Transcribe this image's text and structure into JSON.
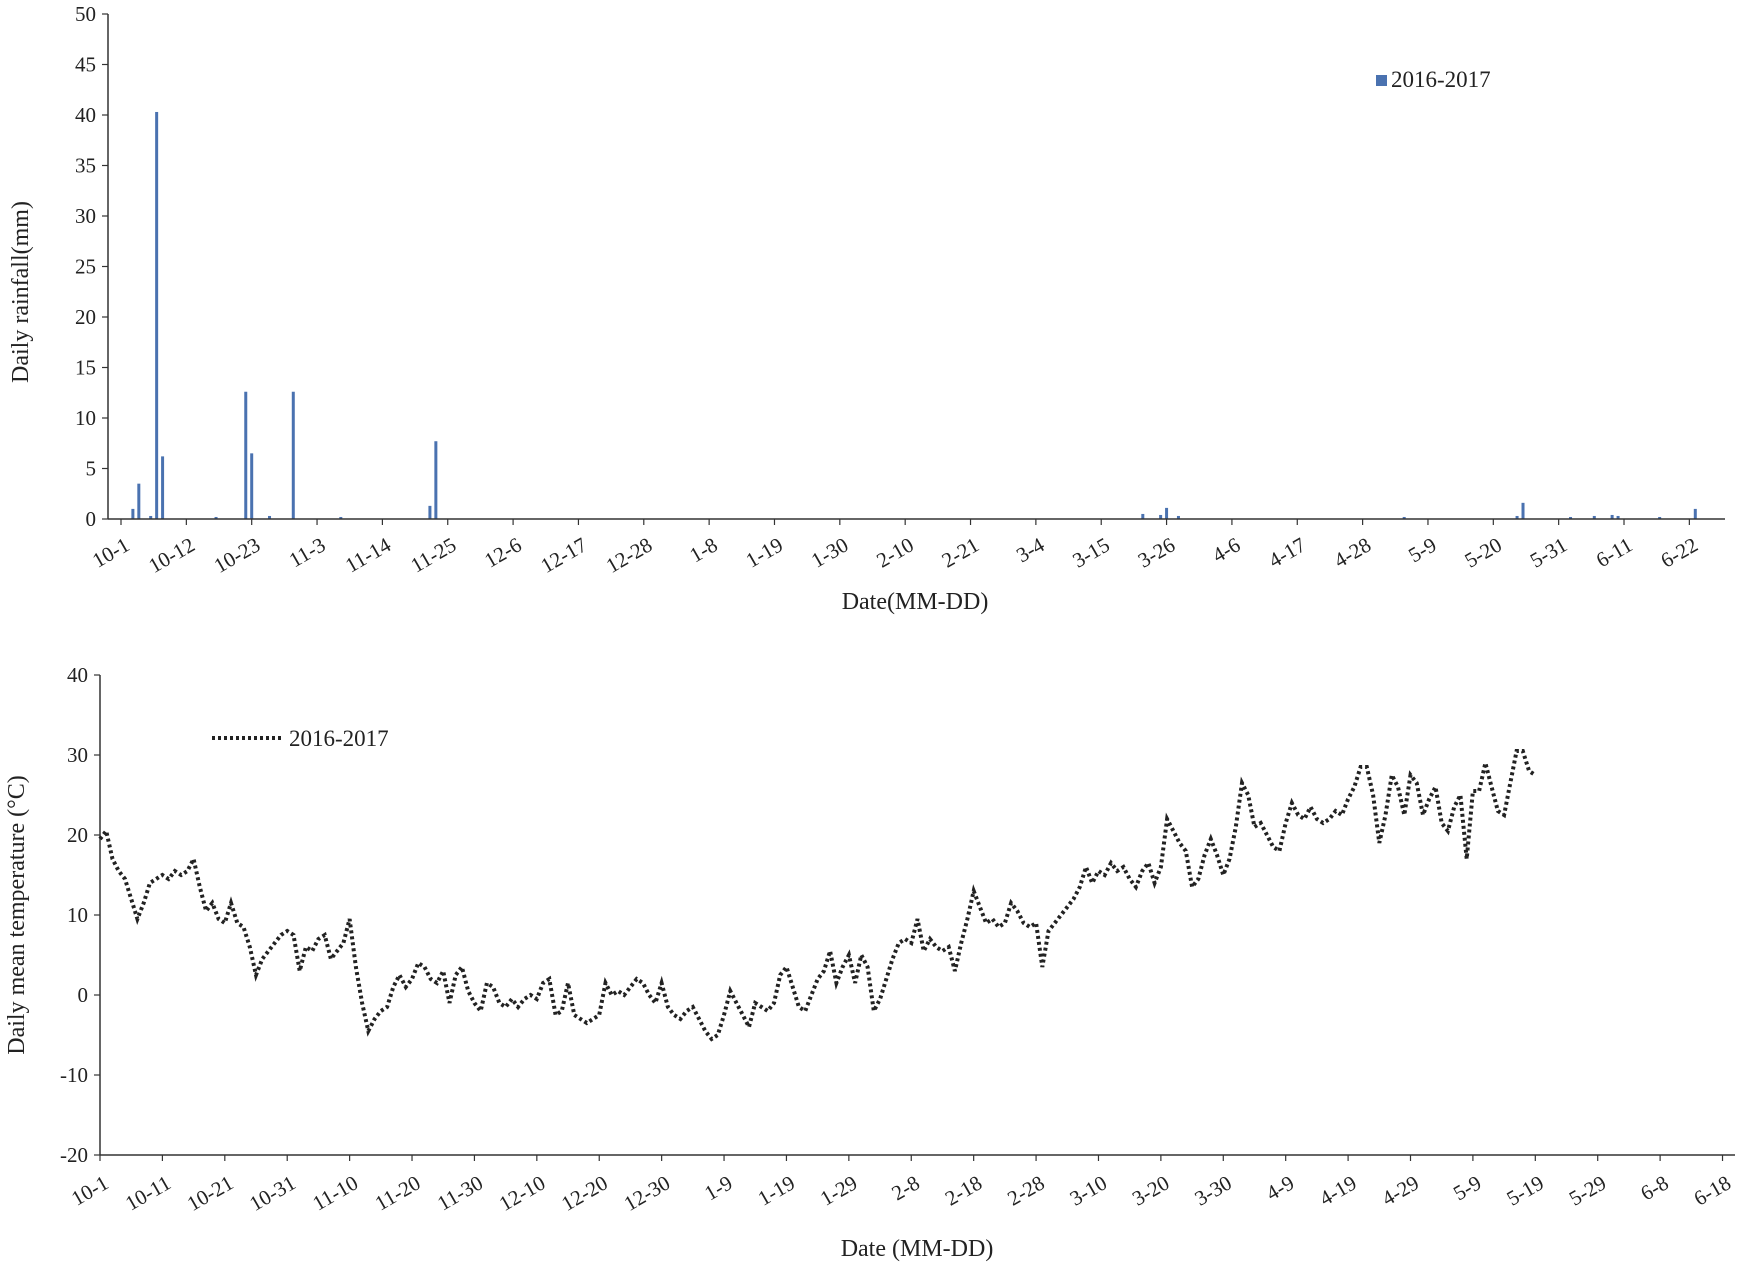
{
  "chart_data": [
    {
      "type": "bar",
      "title": "",
      "xlabel": "Date(MM-DD)",
      "ylabel": "Daily rainfall(mm)",
      "ylim": [
        0,
        50
      ],
      "yticks": [
        0,
        5,
        10,
        15,
        20,
        25,
        30,
        35,
        40,
        45,
        50
      ],
      "xticks": [
        "10-1",
        "10-12",
        "10-23",
        "11-3",
        "11-14",
        "11-25",
        "12-6",
        "12-17",
        "12-28",
        "1-8",
        "1-19",
        "1-30",
        "2-10",
        "2-21",
        "3-4",
        "3-15",
        "3-26",
        "4-6",
        "4-17",
        "4-28",
        "5-9",
        "5-20",
        "5-31",
        "6-11",
        "6-22"
      ],
      "legend": {
        "position": "top-right",
        "entries": [
          "2016-2017"
        ]
      },
      "grid": false,
      "series": [
        {
          "name": "2016-2017",
          "color": "#4a72b0",
          "points": [
            {
              "x": "10-3",
              "y": 1.0
            },
            {
              "x": "10-4",
              "y": 3.5
            },
            {
              "x": "10-6",
              "y": 0.3
            },
            {
              "x": "10-7",
              "y": 40.3
            },
            {
              "x": "10-8",
              "y": 6.2
            },
            {
              "x": "10-17",
              "y": 0.2
            },
            {
              "x": "10-22",
              "y": 12.6
            },
            {
              "x": "10-23",
              "y": 6.5
            },
            {
              "x": "10-26",
              "y": 0.3
            },
            {
              "x": "10-30",
              "y": 12.6
            },
            {
              "x": "11-7",
              "y": 0.2
            },
            {
              "x": "11-22",
              "y": 1.3
            },
            {
              "x": "11-23",
              "y": 7.7
            },
            {
              "x": "3-22",
              "y": 0.5
            },
            {
              "x": "3-25",
              "y": 0.4
            },
            {
              "x": "3-26",
              "y": 1.1
            },
            {
              "x": "3-28",
              "y": 0.3
            },
            {
              "x": "5-5",
              "y": 0.2
            },
            {
              "x": "5-24",
              "y": 0.3
            },
            {
              "x": "5-25",
              "y": 1.6
            },
            {
              "x": "6-2",
              "y": 0.2
            },
            {
              "x": "6-6",
              "y": 0.3
            },
            {
              "x": "6-9",
              "y": 0.4
            },
            {
              "x": "6-10",
              "y": 0.3
            },
            {
              "x": "6-17",
              "y": 0.2
            },
            {
              "x": "6-23",
              "y": 1.0
            }
          ]
        }
      ]
    },
    {
      "type": "line",
      "title": "",
      "xlabel": "Date (MM-DD)",
      "ylabel": "Daily mean temperature (°C)",
      "ylim": [
        -20,
        40
      ],
      "yticks": [
        -20,
        -10,
        0,
        10,
        20,
        30,
        40
      ],
      "xticks": [
        "10-1",
        "10-11",
        "10-21",
        "10-31",
        "11-10",
        "11-20",
        "11-30",
        "12-10",
        "12-20",
        "12-30",
        "1-9",
        "1-19",
        "1-29",
        "2-8",
        "2-18",
        "2-28",
        "3-10",
        "3-20",
        "3-30",
        "4-9",
        "4-19",
        "4-29",
        "5-9",
        "5-19",
        "5-29",
        "6-8",
        "6-18"
      ],
      "legend": {
        "position": "top-left",
        "entries": [
          "2016-2017"
        ]
      },
      "grid": false,
      "series": [
        {
          "name": "2016-2017",
          "color": "#222222",
          "line_style": "dotted",
          "start_date": "10-1",
          "values": [
            19.5,
            20.5,
            17.0,
            15.5,
            14.5,
            12.0,
            9.5,
            11.5,
            14.0,
            14.5,
            15.0,
            14.5,
            15.5,
            15.0,
            15.5,
            17.0,
            13.5,
            10.5,
            11.5,
            9.5,
            9.0,
            11.5,
            9.0,
            8.5,
            6.0,
            2.5,
            4.5,
            5.5,
            6.5,
            7.5,
            8.0,
            7.5,
            3.0,
            6.0,
            5.5,
            7.0,
            7.5,
            4.5,
            5.5,
            6.5,
            9.5,
            3.5,
            -1.0,
            -4.5,
            -3.0,
            -2.0,
            -1.5,
            1.0,
            2.5,
            1.0,
            2.0,
            4.0,
            3.5,
            2.0,
            1.5,
            3.0,
            -1.0,
            2.5,
            3.5,
            0.5,
            -1.0,
            -2.0,
            1.5,
            1.0,
            -1.0,
            -1.5,
            -0.5,
            -1.5,
            -0.5,
            0.0,
            -0.5,
            1.5,
            2.0,
            -2.5,
            -2.0,
            1.5,
            -2.5,
            -3.0,
            -3.5,
            -3.0,
            -2.5,
            1.5,
            0.0,
            0.5,
            0.0,
            1.0,
            2.0,
            1.5,
            0.0,
            -1.0,
            1.5,
            -1.5,
            -2.5,
            -3.0,
            -2.0,
            -1.5,
            -3.0,
            -4.5,
            -5.5,
            -5.0,
            -2.5,
            0.5,
            -1.0,
            -2.5,
            -4.0,
            -1.0,
            -1.5,
            -2.0,
            -1.0,
            2.5,
            3.5,
            1.0,
            -1.5,
            -2.0,
            0.0,
            2.0,
            3.0,
            5.5,
            1.5,
            3.5,
            5.0,
            1.5,
            5.0,
            3.5,
            -2.0,
            -0.5,
            2.0,
            4.5,
            6.5,
            7.0,
            6.5,
            9.5,
            5.5,
            7.0,
            6.0,
            5.5,
            6.0,
            3.0,
            6.5,
            9.5,
            13.0,
            11.0,
            9.0,
            9.5,
            8.5,
            9.0,
            11.5,
            10.5,
            9.0,
            8.5,
            9.0,
            3.5,
            8.0,
            9.0,
            10.0,
            11.0,
            12.0,
            13.5,
            16.0,
            14.0,
            15.5,
            15.0,
            16.5,
            15.5,
            16.0,
            14.5,
            13.5,
            15.5,
            16.5,
            14.0,
            16.0,
            22.0,
            20.5,
            19.0,
            18.0,
            13.5,
            14.5,
            17.5,
            19.5,
            17.5,
            15.0,
            17.0,
            21.0,
            26.5,
            25.0,
            21.0,
            21.5,
            20.0,
            18.5,
            18.0,
            21.5,
            24.0,
            22.5,
            22.0,
            23.5,
            22.0,
            21.5,
            22.0,
            23.0,
            22.5,
            24.5,
            26.0,
            28.5,
            28.5,
            25.0,
            19.0,
            22.5,
            27.5,
            26.0,
            22.5,
            27.5,
            26.5,
            22.5,
            24.5,
            26.0,
            21.5,
            20.5,
            23.5,
            25.0,
            17.0,
            25.5,
            25.5,
            29.0,
            26.0,
            23.0,
            22.5,
            26.5,
            30.5,
            30.5,
            28.0,
            27.5
          ]
        }
      ]
    }
  ]
}
